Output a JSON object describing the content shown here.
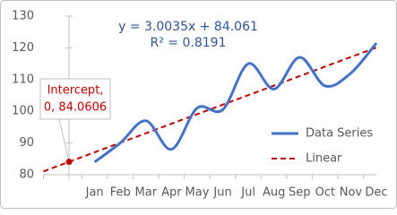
{
  "chart_data": {
    "type": "line",
    "categories": [
      "Jan",
      "Feb",
      "Mar",
      "Apr",
      "May",
      "Jun",
      "Jul",
      "Aug",
      "Sep",
      "Oct",
      "Nov",
      "Dec"
    ],
    "series": [
      {
        "name": "Data Series",
        "color": "#4472c4",
        "values": [
          84,
          90,
          97,
          88,
          101,
          100.5,
          115,
          107,
          117,
          108,
          112,
          121.5
        ],
        "smooth": true
      }
    ],
    "trendline": {
      "name": "Linear",
      "color": "#c00000",
      "slope": 3.0035,
      "intercept": 84.061,
      "equation": "y = 3.0035x + 84.061",
      "r2_label": "R² = 0.8191"
    },
    "annotation": {
      "label_lines": [
        "Intercept,",
        "0, 84.0606"
      ],
      "x": 0,
      "y": 84.0606,
      "color": "#c00000"
    },
    "xlim": [
      -1,
      12
    ],
    "ylim": [
      80,
      130
    ],
    "yticks": [
      80,
      90,
      100,
      110,
      120,
      130
    ],
    "legend": "right"
  }
}
